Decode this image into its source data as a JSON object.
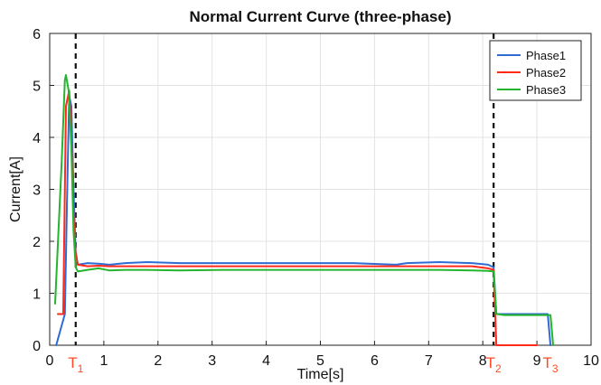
{
  "chart_data": {
    "type": "line",
    "title": "Normal Current Curve (three-phase)",
    "xlabel": "Time[s]",
    "ylabel": "Current[A]",
    "xlim": [
      0,
      10
    ],
    "ylim": [
      0,
      6
    ],
    "x_ticks": [
      "0",
      "1",
      "2",
      "3",
      "4",
      "5",
      "6",
      "7",
      "8",
      "9",
      "10"
    ],
    "y_ticks": [
      "0",
      "1",
      "2",
      "3",
      "4",
      "5",
      "6"
    ],
    "grid": true,
    "legend_position": "top-right",
    "vertical_markers": [
      {
        "x": 0.48,
        "label": "T",
        "subscript": "1"
      },
      {
        "x": 8.2,
        "label": "T",
        "subscript": "2"
      },
      {
        "x": 9.25,
        "label": "T",
        "subscript": "3"
      }
    ],
    "series": [
      {
        "name": "Phase1",
        "color": "#2f6bd3",
        "x": [
          0.12,
          0.28,
          0.32,
          0.36,
          0.4,
          0.44,
          0.48,
          0.52,
          0.7,
          0.9,
          1.1,
          1.4,
          1.8,
          2.4,
          3.2,
          4.0,
          4.8,
          5.6,
          6.4,
          6.6,
          7.2,
          7.8,
          8.1,
          8.2,
          8.25,
          8.4,
          8.7,
          9.0,
          9.1,
          9.2,
          9.25
        ],
        "values": [
          0.0,
          0.6,
          2.8,
          4.8,
          4.6,
          3.0,
          1.8,
          1.55,
          1.58,
          1.57,
          1.55,
          1.58,
          1.6,
          1.58,
          1.58,
          1.58,
          1.58,
          1.58,
          1.55,
          1.58,
          1.6,
          1.58,
          1.55,
          1.5,
          0.6,
          0.6,
          0.6,
          0.6,
          0.6,
          0.6,
          0.0
        ]
      },
      {
        "name": "Phase2",
        "color": "#ff2a1a",
        "x": [
          0.15,
          0.25,
          0.3,
          0.36,
          0.4,
          0.44,
          0.48,
          0.52,
          0.7,
          0.9,
          1.1,
          1.4,
          1.8,
          2.4,
          3.2,
          4.0,
          4.8,
          5.6,
          6.4,
          7.2,
          7.8,
          8.1,
          8.2,
          8.25,
          8.4,
          8.7,
          9.0
        ],
        "values": [
          0.6,
          0.6,
          4.6,
          4.9,
          4.0,
          2.5,
          1.75,
          1.55,
          1.52,
          1.53,
          1.52,
          1.52,
          1.52,
          1.52,
          1.52,
          1.52,
          1.52,
          1.52,
          1.52,
          1.52,
          1.52,
          1.48,
          1.45,
          0.0,
          0.0,
          0.0,
          0.0
        ]
      },
      {
        "name": "Phase3",
        "color": "#22b52d",
        "x": [
          0.1,
          0.22,
          0.28,
          0.3,
          0.35,
          0.4,
          0.44,
          0.48,
          0.52,
          0.7,
          0.9,
          1.1,
          1.4,
          1.8,
          2.4,
          3.2,
          4.0,
          4.8,
          5.6,
          6.4,
          7.2,
          7.8,
          8.1,
          8.2,
          8.25,
          8.4,
          8.7,
          9.0,
          9.1,
          9.2,
          9.25,
          9.3
        ],
        "values": [
          0.8,
          3.5,
          5.1,
          5.2,
          4.9,
          3.8,
          2.2,
          1.5,
          1.42,
          1.45,
          1.48,
          1.44,
          1.45,
          1.45,
          1.44,
          1.45,
          1.45,
          1.45,
          1.45,
          1.45,
          1.45,
          1.44,
          1.43,
          1.42,
          0.6,
          0.58,
          0.58,
          0.58,
          0.58,
          0.58,
          0.58,
          0.0
        ]
      }
    ]
  }
}
